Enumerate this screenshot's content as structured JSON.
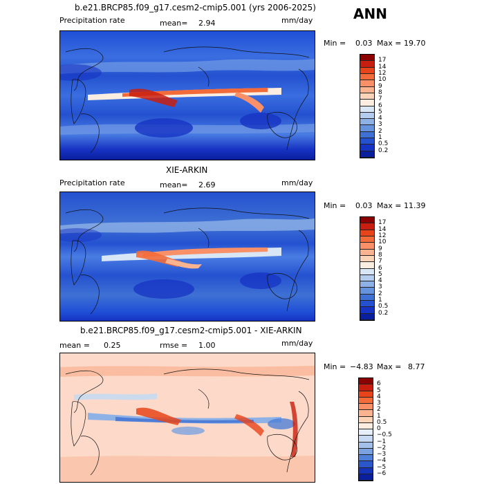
{
  "season": "ANN",
  "panels": [
    {
      "title": "b.e21.BRCP85.f09_g17.cesm2-cmip5.001 (yrs 2006-2025)",
      "left_text": "Precipitation rate",
      "mean_label": "mean=",
      "mean_value": "2.94",
      "units": "mm/day",
      "min_label": "Min =",
      "min_value": "0.03",
      "max_label": "Max =",
      "max_value": "19.70",
      "colorbar": {
        "labels": [
          "17",
          "14",
          "12",
          "10",
          "9",
          "8",
          "7",
          "6",
          "5",
          "4",
          "3",
          "2",
          "1",
          "0.5",
          "0.2"
        ],
        "colors": [
          "#8b0000",
          "#c81e0f",
          "#e8441a",
          "#f46b3a",
          "#f99067",
          "#fcb38f",
          "#fdd4b8",
          "#fbeee0",
          "#d8e6f5",
          "#b4cdee",
          "#8eb1e6",
          "#6693dd",
          "#3f71d4",
          "#2451d0",
          "#1733c3",
          "#0a1f9e"
        ]
      }
    },
    {
      "title": "XIE-ARKIN",
      "left_text": "Precipitation rate",
      "mean_label": "mean=",
      "mean_value": "2.69",
      "units": "mm/day",
      "min_label": "Min =",
      "min_value": "0.03",
      "max_label": "Max =",
      "max_value": "11.39",
      "colorbar": {
        "labels": [
          "17",
          "14",
          "12",
          "10",
          "9",
          "8",
          "7",
          "6",
          "5",
          "4",
          "3",
          "2",
          "1",
          "0.5",
          "0.2"
        ],
        "colors": [
          "#8b0000",
          "#c81e0f",
          "#e8441a",
          "#f46b3a",
          "#f99067",
          "#fcb38f",
          "#fdd4b8",
          "#fbeee0",
          "#d8e6f5",
          "#b4cdee",
          "#8eb1e6",
          "#6693dd",
          "#3f71d4",
          "#2451d0",
          "#1733c3",
          "#0a1f9e"
        ]
      }
    },
    {
      "title": "b.e21.BRCP85.f09_g17.cesm2-cmip5.001 - XIE-ARKIN",
      "mean_label": "mean =",
      "mean_value": "0.25",
      "rmse_label": "rmse =",
      "rmse_value": "1.00",
      "units": "mm/day",
      "min_label": "Min =",
      "min_value": "−4.83",
      "max_label": "Max =",
      "max_value": "8.77",
      "colorbar": {
        "labels": [
          "6",
          "5",
          "4",
          "3",
          "2",
          "1",
          "0.5",
          "0",
          "−0.5",
          "−1",
          "−2",
          "−3",
          "−4",
          "−5",
          "−6"
        ],
        "colors": [
          "#8b0000",
          "#c81e0f",
          "#e8441a",
          "#f46b3a",
          "#f99067",
          "#fcb38f",
          "#fdd4b8",
          "#fbeee0",
          "#e6eefa",
          "#c7d9f2",
          "#a3c0ea",
          "#7ba2e0",
          "#4f7fd6",
          "#2c57cb",
          "#1433b8",
          "#0a1f9e"
        ]
      }
    }
  ]
}
